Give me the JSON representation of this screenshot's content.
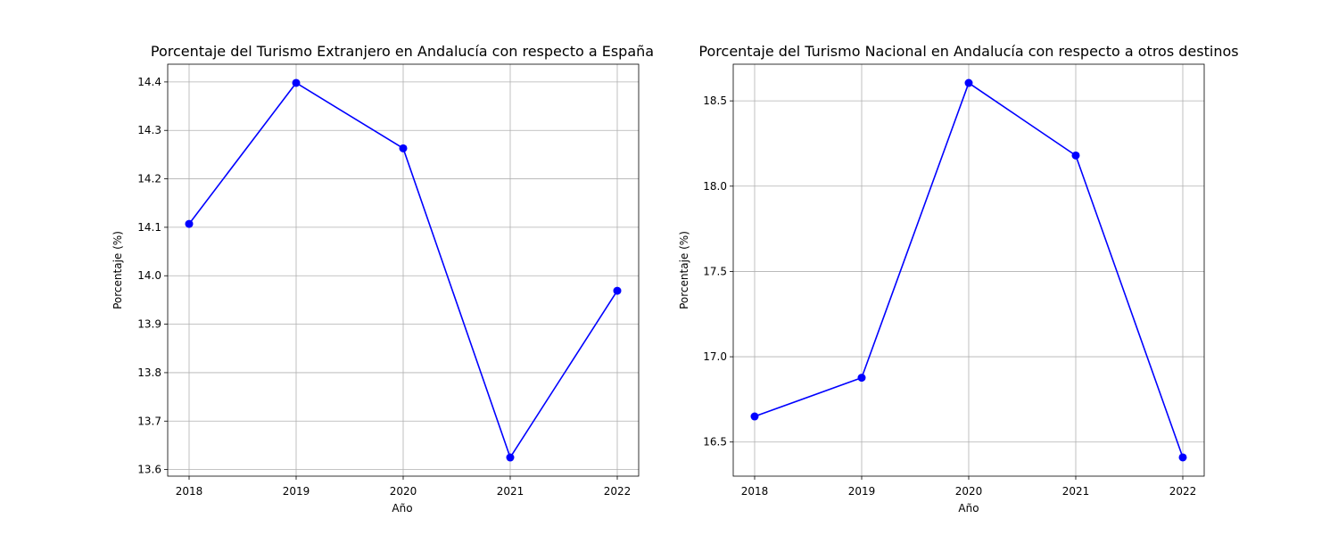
{
  "colors": {
    "series": "#0000ff",
    "grid": "#b0b0b0",
    "frame": "#000000",
    "background": "#ffffff"
  },
  "chart_data": [
    {
      "type": "line",
      "title": "Porcentaje del Turismo Extranjero en Andalucía con respecto a España",
      "xlabel": "Año",
      "ylabel": "Porcentaje (%)",
      "x": [
        2018,
        2019,
        2020,
        2021,
        2022
      ],
      "x_tick_labels": [
        "2018",
        "2019",
        "2020",
        "2021",
        "2022"
      ],
      "values": [
        14.107,
        14.398,
        14.263,
        13.625,
        13.969
      ],
      "y_ticks": [
        13.6,
        13.7,
        13.8,
        13.9,
        14.0,
        14.1,
        14.2,
        14.3,
        14.4
      ],
      "y_tick_labels": [
        "13.6",
        "13.7",
        "13.8",
        "13.9",
        "14.0",
        "14.1",
        "14.2",
        "14.3",
        "14.4"
      ],
      "xlim": [
        2017.8,
        2022.2
      ],
      "ylim": [
        13.5864,
        14.4366
      ],
      "grid": true,
      "marker": "circle",
      "legend": "none"
    },
    {
      "type": "line",
      "title": "Porcentaje del Turismo Nacional en Andalucía con respecto a otros destinos",
      "xlabel": "Año",
      "ylabel": "Porcentaje (%)",
      "x": [
        2018,
        2019,
        2020,
        2021,
        2022
      ],
      "x_tick_labels": [
        "2018",
        "2019",
        "2020",
        "2021",
        "2022"
      ],
      "values": [
        16.65,
        16.877,
        18.605,
        18.18,
        16.41
      ],
      "y_ticks": [
        16.5,
        17.0,
        17.5,
        18.0,
        18.5
      ],
      "y_tick_labels": [
        "16.5",
        "17.0",
        "17.5",
        "18.0",
        "18.5"
      ],
      "xlim": [
        2017.8,
        2022.2
      ],
      "ylim": [
        16.3,
        18.715
      ],
      "grid": true,
      "marker": "circle",
      "legend": "none"
    }
  ]
}
